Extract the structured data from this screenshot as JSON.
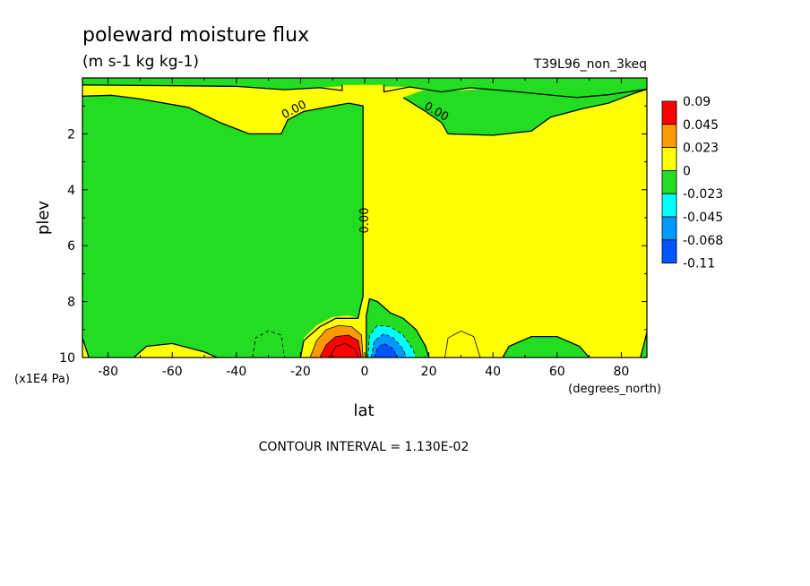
{
  "chart_data": {
    "type": "heatmap",
    "title": "poleward moisture flux",
    "subtitle": "(m s-1 kg kg-1)",
    "run_label": "T39L96_non_3keq",
    "xlabel": "lat",
    "x_units": "(degrees_north)",
    "ylabel": "plev",
    "y_units": "(x1E4 Pa)",
    "xlim": [
      -88,
      88
    ],
    "ylim": [
      0,
      10
    ],
    "y_inverted": true,
    "x_ticks": [
      "-80",
      "-60",
      "-40",
      "-20",
      "0",
      "20",
      "40",
      "60",
      "80"
    ],
    "x_tick_values": [
      -80,
      -60,
      -40,
      -20,
      0,
      20,
      40,
      60,
      80
    ],
    "y_ticks": [
      "2",
      "4",
      "6",
      "8",
      "10"
    ],
    "y_tick_values": [
      2,
      4,
      6,
      8,
      10
    ],
    "contour_interval_text": "CONTOUR INTERVAL = 1.130E-02",
    "contour_labels": [
      "0.00",
      "0.00",
      "0.00"
    ],
    "legend": {
      "placement": "right",
      "levels": [
        "0.09",
        "0.045",
        "0.023",
        "0",
        "-0.023",
        "-0.045",
        "-0.068",
        "-0.11"
      ],
      "colors": [
        "#ff0000",
        "#ff9900",
        "#ffff00",
        "#22dd22",
        "#00ffff",
        "#0099ff",
        "#0055ff"
      ]
    },
    "field_colors": {
      "strong_pos": "#ff0000",
      "mid_pos": "#ff9900",
      "weak_pos": "#ffff00",
      "weak_neg": "#22dd22",
      "mid_neg": "#00ffff",
      "strong_neg": "#0099ff",
      "max_neg": "#0055ff"
    }
  }
}
